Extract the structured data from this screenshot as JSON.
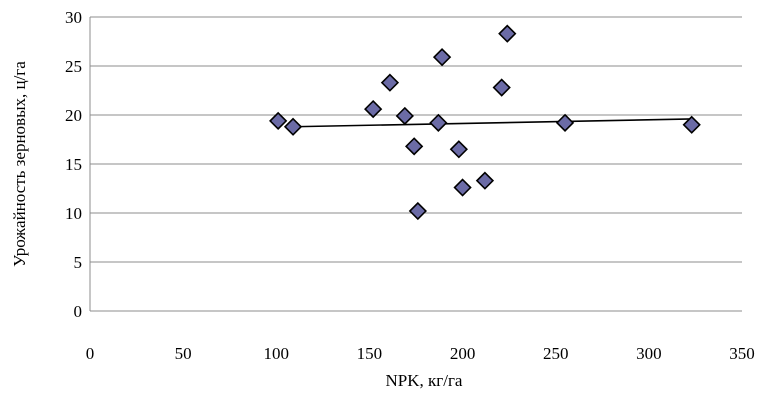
{
  "chart_data": {
    "type": "scatter",
    "title": "",
    "xlabel": "NPK, кг/га",
    "ylabel": "Урожайность зерновых, ц/га",
    "xlim": [
      0,
      350
    ],
    "ylim": [
      0,
      30
    ],
    "x_ticks": [
      0,
      50,
      100,
      150,
      200,
      250,
      300,
      350
    ],
    "y_ticks": [
      0,
      5,
      10,
      15,
      20,
      25,
      30
    ],
    "grid": "horizontal",
    "legend": "none",
    "marker": "diamond",
    "marker_color": "#6b6ba6",
    "series": [
      {
        "points": [
          {
            "x": 101,
            "y": 19.4
          },
          {
            "x": 109,
            "y": 18.8
          },
          {
            "x": 152,
            "y": 20.6
          },
          {
            "x": 161,
            "y": 23.3
          },
          {
            "x": 169,
            "y": 19.9
          },
          {
            "x": 174,
            "y": 16.8
          },
          {
            "x": 176,
            "y": 10.2
          },
          {
            "x": 187,
            "y": 19.2
          },
          {
            "x": 189,
            "y": 25.9
          },
          {
            "x": 198,
            "y": 16.5
          },
          {
            "x": 200,
            "y": 12.6
          },
          {
            "x": 212,
            "y": 13.3
          },
          {
            "x": 221,
            "y": 22.8
          },
          {
            "x": 224,
            "y": 28.3
          },
          {
            "x": 255,
            "y": 19.2
          },
          {
            "x": 323,
            "y": 19.0
          }
        ]
      }
    ],
    "trendline": {
      "type": "linear",
      "x_start": 109,
      "x_end": 323,
      "y_start": 18.8,
      "y_end": 19.6
    }
  }
}
